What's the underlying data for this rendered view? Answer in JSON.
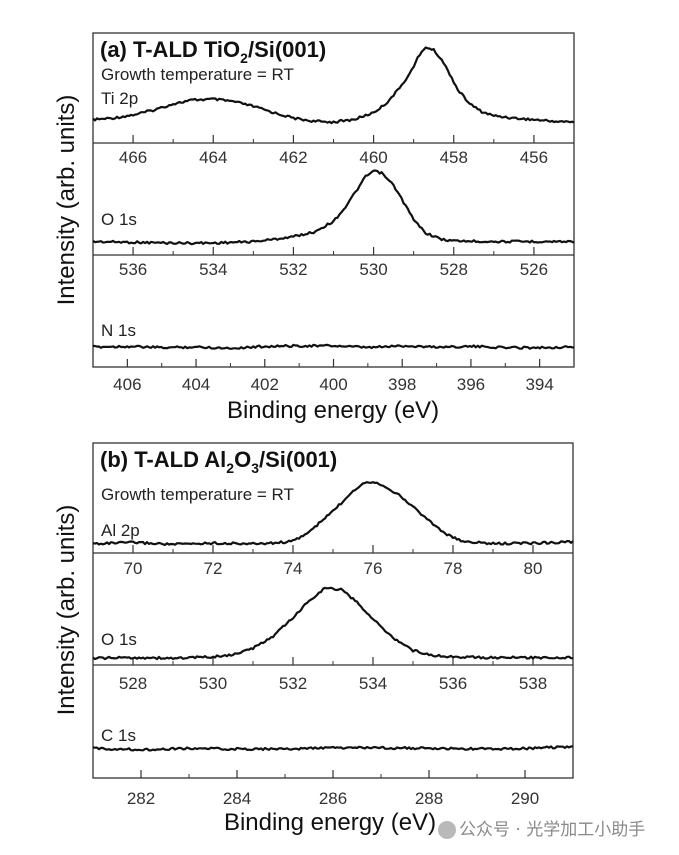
{
  "chart_data": [
    {
      "type": "line",
      "panel": "a",
      "title_parts": [
        "(a) T-ALD TiO",
        "2",
        "/Si(001)"
      ],
      "title": "(a) T-ALD TiO2/Si(001)",
      "subtitle": "Growth temperature = RT",
      "xlabel": "Binding energy (eV)",
      "ylabel": "Intensity (arb. units)",
      "subplots": [
        {
          "label": "Ti 2p",
          "xlim": [
            467,
            455
          ],
          "ticks": [
            466,
            464,
            462,
            460,
            458,
            456
          ],
          "minor_ticks": [
            465,
            463,
            461,
            459,
            457
          ],
          "series": {
            "x": [
              467,
              466.5,
              466,
              465.5,
              465,
              464.5,
              464,
              463.5,
              463,
              462.5,
              462,
              461.5,
              461,
              460.5,
              460,
              459.7,
              459.4,
              459.1,
              458.9,
              458.7,
              458.5,
              458.3,
              458.1,
              457.9,
              457.6,
              457.3,
              457,
              456.5,
              456,
              455.5,
              455
            ],
            "y": [
              0.08,
              0.1,
              0.14,
              0.2,
              0.28,
              0.33,
              0.34,
              0.31,
              0.25,
              0.17,
              0.1,
              0.06,
              0.05,
              0.08,
              0.17,
              0.28,
              0.45,
              0.66,
              0.86,
              1.0,
              0.96,
              0.84,
              0.66,
              0.46,
              0.28,
              0.18,
              0.13,
              0.1,
              0.08,
              0.06,
              0.05
            ]
          }
        },
        {
          "label": "O 1s",
          "xlim": [
            537,
            525
          ],
          "ticks": [
            536,
            534,
            532,
            530,
            528,
            526
          ],
          "minor_ticks": [
            535,
            533,
            531,
            529,
            527
          ],
          "series": {
            "x": [
              537,
              536,
              535,
              534,
              533,
              532.5,
              532,
              531.5,
              531,
              530.7,
              530.4,
              530.2,
              530,
              529.8,
              529.5,
              529.2,
              529,
              528.7,
              528.3,
              528,
              527,
              526,
              525
            ],
            "y": [
              0.02,
              0.01,
              0.0,
              0.0,
              0.02,
              0.05,
              0.09,
              0.15,
              0.3,
              0.5,
              0.75,
              0.92,
              1.0,
              0.97,
              0.8,
              0.52,
              0.32,
              0.14,
              0.05,
              0.03,
              0.02,
              0.02,
              0.02
            ]
          }
        },
        {
          "label": "N 1s",
          "xlim": [
            407,
            393
          ],
          "ticks": [
            406,
            404,
            402,
            400,
            398,
            396,
            394
          ],
          "minor_ticks": [
            405,
            403,
            401,
            399,
            397,
            395
          ],
          "series": {
            "x": [
              407,
              406,
              405,
              404,
              403,
              402,
              401,
              400,
              399,
              398,
              397,
              396,
              395,
              394,
              393
            ],
            "y": [
              0.0,
              0.01,
              -0.01,
              0.0,
              -0.02,
              0.01,
              0.02,
              0.02,
              -0.01,
              0.02,
              0.0,
              0.01,
              -0.01,
              -0.01,
              0.0
            ]
          }
        }
      ]
    },
    {
      "type": "line",
      "panel": "b",
      "title_parts": [
        "(b) T-ALD Al",
        "2",
        "O",
        "3",
        "/Si(001)"
      ],
      "title": "(b) T-ALD Al2O3/Si(001)",
      "subtitle": "Growth temperature = RT",
      "xlabel": "Binding energy (eV)",
      "ylabel": "Intensity (arb. units)",
      "subplots": [
        {
          "label": "Al 2p",
          "xlim": [
            69,
            81
          ],
          "ticks": [
            70,
            72,
            74,
            76,
            78,
            80
          ],
          "minor_ticks": [
            71,
            73,
            75,
            77,
            79
          ],
          "series": {
            "x": [
              69,
              70,
              71,
              72,
              73,
              73.5,
              74,
              74.4,
              74.8,
              75.2,
              75.5,
              75.8,
              76,
              76.3,
              76.6,
              77,
              77.4,
              77.8,
              78.2,
              79,
              80,
              81
            ],
            "y": [
              0.02,
              0.04,
              0.01,
              0.03,
              0.02,
              0.03,
              0.06,
              0.2,
              0.42,
              0.65,
              0.85,
              0.98,
              0.99,
              0.92,
              0.8,
              0.6,
              0.38,
              0.18,
              0.06,
              0.02,
              0.03,
              0.05
            ]
          }
        },
        {
          "label": "O 1s",
          "xlim": [
            527,
            539
          ],
          "ticks": [
            528,
            530,
            532,
            534,
            536,
            538
          ],
          "minor_ticks": [
            529,
            531,
            533,
            535,
            537
          ],
          "series": {
            "x": [
              527,
              528,
              529,
              530,
              530.5,
              531,
              531.5,
              532,
              532.4,
              532.8,
              533.2,
              533.6,
              534,
              534.5,
              535,
              535.5,
              536,
              537,
              538,
              539
            ],
            "y": [
              0.01,
              0.02,
              0.01,
              0.03,
              0.06,
              0.15,
              0.32,
              0.58,
              0.82,
              1.0,
              0.98,
              0.8,
              0.56,
              0.3,
              0.12,
              0.05,
              0.03,
              0.02,
              0.02,
              0.02
            ]
          }
        },
        {
          "label": "C 1s",
          "xlim": [
            281,
            291
          ],
          "ticks": [
            282,
            284,
            286,
            288,
            290
          ],
          "minor_ticks": [
            283,
            285,
            287,
            289
          ],
          "series": {
            "x": [
              281,
              282,
              283,
              284,
              285,
              286,
              287,
              288,
              289,
              290,
              291
            ],
            "y": [
              0.01,
              -0.01,
              0.01,
              0.0,
              0.0,
              0.02,
              0.02,
              0.01,
              0.0,
              0.01,
              0.04
            ]
          }
        }
      ]
    }
  ],
  "watermark": {
    "icon": "wechat-icon",
    "text": "公众号 · 光学加工小助手"
  }
}
